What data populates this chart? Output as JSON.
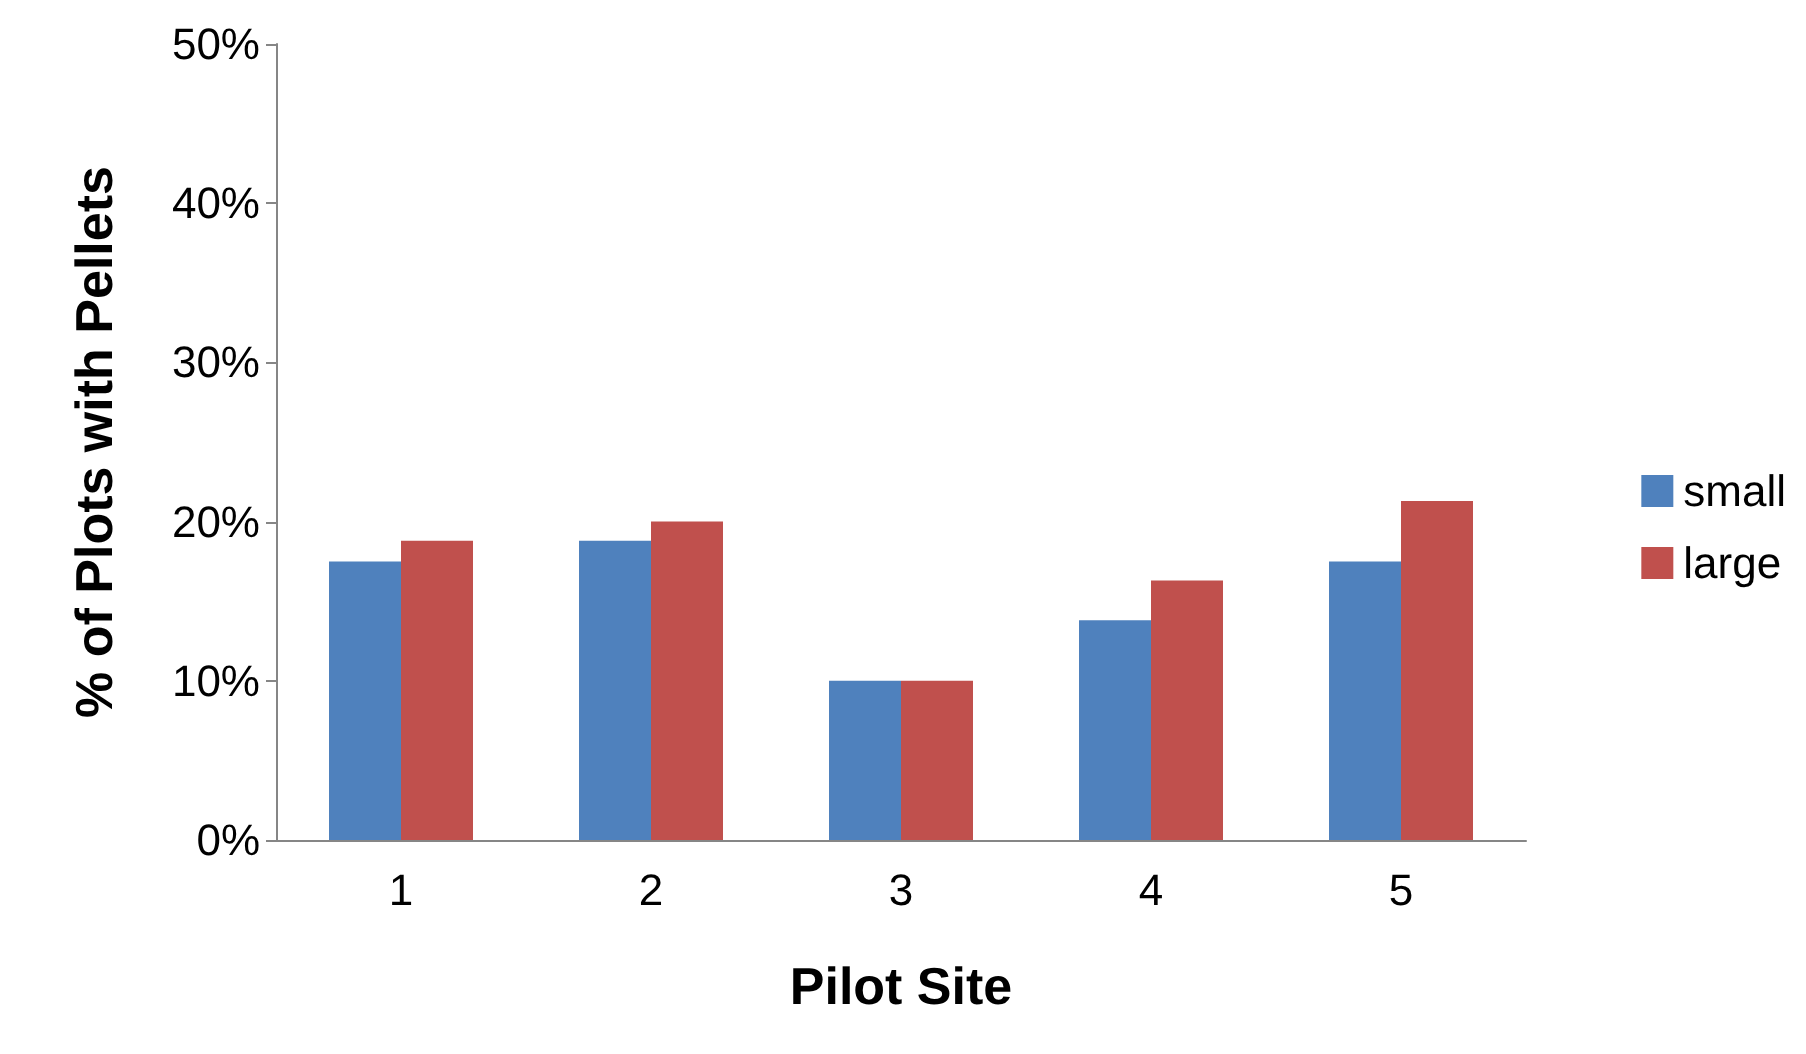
{
  "chart_data": {
    "type": "bar",
    "xlabel": "Pilot Site",
    "ylabel": "% of Plots with Pellets",
    "categories": [
      "1",
      "2",
      "3",
      "4",
      "5"
    ],
    "series": [
      {
        "name": "small",
        "color": "#4f81bd",
        "values": [
          17.5,
          18.8,
          10,
          13.8,
          17.5
        ]
      },
      {
        "name": "large",
        "color": "#c0504d",
        "values": [
          18.8,
          20,
          10,
          16.3,
          21.3
        ]
      }
    ],
    "ylim": [
      0,
      50
    ],
    "yticks": [
      {
        "value": 0,
        "label": "0%"
      },
      {
        "value": 10,
        "label": "10%"
      },
      {
        "value": 20,
        "label": "20%"
      },
      {
        "value": 30,
        "label": "30%"
      },
      {
        "value": 40,
        "label": "40%"
      },
      {
        "value": 50,
        "label": "50%"
      }
    ],
    "grid": false,
    "legend": "right"
  }
}
